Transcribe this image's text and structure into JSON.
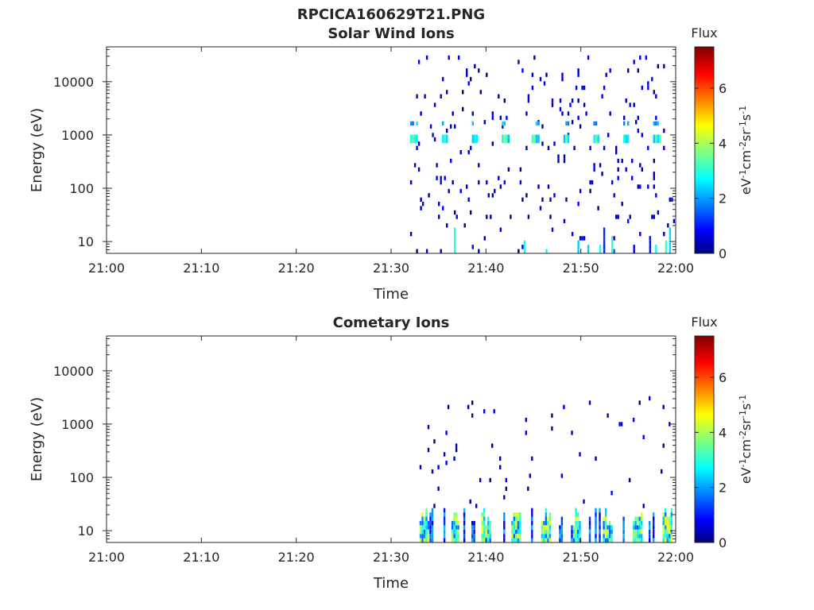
{
  "figure_title": "RPCICA160629T21.PNG",
  "chart_data": [
    {
      "type": "heatmap",
      "title": "Solar Wind Ions",
      "xlabel": "Time",
      "ylabel": "Energy (eV)",
      "yscale": "log",
      "ylim": [
        6,
        45000
      ],
      "xlim": [
        "21:00",
        "22:00"
      ],
      "x_ticks": [
        "21:00",
        "21:10",
        "21:20",
        "21:30",
        "21:40",
        "21:50",
        "22:00"
      ],
      "y_ticks": [
        "10",
        "100",
        "1000",
        "10000"
      ],
      "colorbar": {
        "title": "Flux",
        "unit": "eV-1cm-2sr-1s-1",
        "range": [
          0,
          7.5
        ],
        "ticks": [
          "0",
          "2",
          "4",
          "6"
        ],
        "colormap": "jet"
      },
      "data_start": "21:32",
      "features": [
        {
          "energy_band": "~700-1600 eV",
          "flux": "2-4",
          "period_min": 3.2
        },
        {
          "energy_band": "6-25 eV",
          "flux": "1-4"
        }
      ]
    },
    {
      "type": "heatmap",
      "title": "Cometary Ions",
      "xlabel": "Time",
      "ylabel": "Energy (eV)",
      "yscale": "log",
      "ylim": [
        6,
        45000
      ],
      "xlim": [
        "21:00",
        "22:00"
      ],
      "x_ticks": [
        "21:00",
        "21:10",
        "21:20",
        "21:30",
        "21:40",
        "21:50",
        "22:00"
      ],
      "y_ticks": [
        "10",
        "100",
        "1000",
        "10000"
      ],
      "colorbar": {
        "title": "Flux",
        "unit": "eV-1cm-2sr-1s-1",
        "range": [
          0,
          7.5
        ],
        "ticks": [
          "0",
          "2",
          "4",
          "6"
        ],
        "colormap": "jet"
      },
      "data_start": "21:33",
      "features": [
        {
          "energy_band": "6-25 eV",
          "flux": "2-5",
          "period_min": 3.2
        }
      ]
    }
  ]
}
